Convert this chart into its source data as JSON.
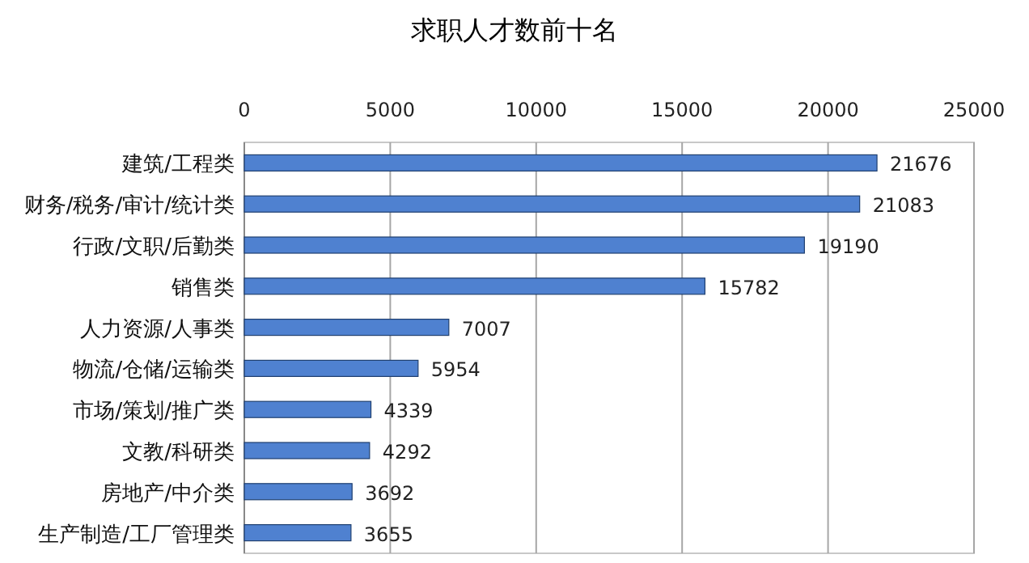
{
  "chart_data": {
    "type": "bar",
    "orientation": "horizontal",
    "title": "求职人才数前十名",
    "categories": [
      "建筑/工程类",
      "财务/税务/审计/统计类",
      "行政/文职/后勤类",
      "销售类",
      "人力资源/人事类",
      "物流/仓储/运输类",
      "市场/策划/推广类",
      "文教/科研类",
      "房地产/中介类",
      "生产制造/工厂管理类"
    ],
    "values": [
      21676,
      21083,
      19190,
      15782,
      7007,
      5954,
      4339,
      4292,
      3692,
      3655
    ],
    "color": "#4f81d0",
    "xlim": [
      0,
      25000
    ],
    "xticks": [
      0,
      5000,
      10000,
      15000,
      20000,
      25000
    ],
    "grid": "x",
    "data_labels": true
  }
}
